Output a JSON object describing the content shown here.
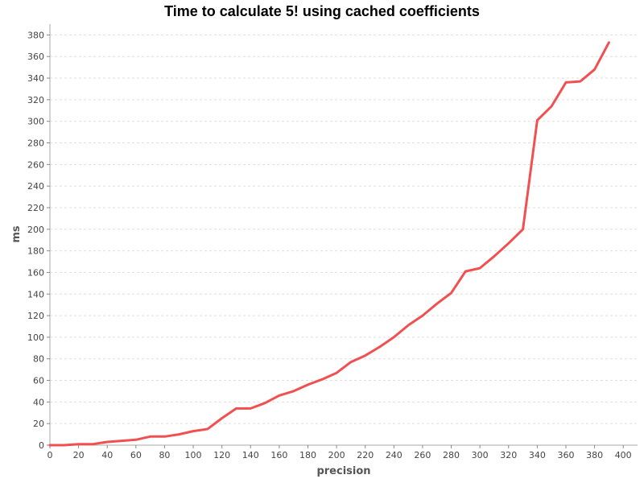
{
  "chart_data": {
    "type": "line",
    "title": "Time to calculate 5! using cached coefficients",
    "xlabel": "precision",
    "ylabel": "ms",
    "xlim": [
      0,
      410
    ],
    "ylim": [
      0,
      390
    ],
    "x_ticks": [
      0,
      20,
      40,
      60,
      80,
      100,
      120,
      140,
      160,
      180,
      200,
      220,
      240,
      260,
      280,
      300,
      320,
      340,
      360,
      380,
      400
    ],
    "y_ticks": [
      0,
      20,
      40,
      60,
      80,
      100,
      120,
      140,
      160,
      180,
      200,
      220,
      240,
      260,
      280,
      300,
      320,
      340,
      360,
      380
    ],
    "grid": true,
    "legend": false,
    "series": [
      {
        "color": "#f05050",
        "points": [
          [
            0,
            0
          ],
          [
            10,
            0
          ],
          [
            20,
            1
          ],
          [
            30,
            1
          ],
          [
            40,
            3
          ],
          [
            50,
            4
          ],
          [
            60,
            5
          ],
          [
            70,
            8
          ],
          [
            80,
            8
          ],
          [
            90,
            10
          ],
          [
            100,
            13
          ],
          [
            110,
            15
          ],
          [
            120,
            25
          ],
          [
            130,
            34
          ],
          [
            140,
            34
          ],
          [
            150,
            39
          ],
          [
            160,
            46
          ],
          [
            170,
            50
          ],
          [
            180,
            56
          ],
          [
            190,
            61
          ],
          [
            200,
            67
          ],
          [
            210,
            77
          ],
          [
            220,
            83
          ],
          [
            230,
            91
          ],
          [
            240,
            100
          ],
          [
            250,
            111
          ],
          [
            260,
            120
          ],
          [
            270,
            131
          ],
          [
            280,
            141
          ],
          [
            290,
            161
          ],
          [
            300,
            164
          ],
          [
            310,
            175
          ],
          [
            320,
            187
          ],
          [
            330,
            200
          ],
          [
            340,
            301
          ],
          [
            350,
            314
          ],
          [
            360,
            336
          ],
          [
            370,
            337
          ],
          [
            380,
            348
          ],
          [
            390,
            373
          ]
        ]
      }
    ]
  }
}
